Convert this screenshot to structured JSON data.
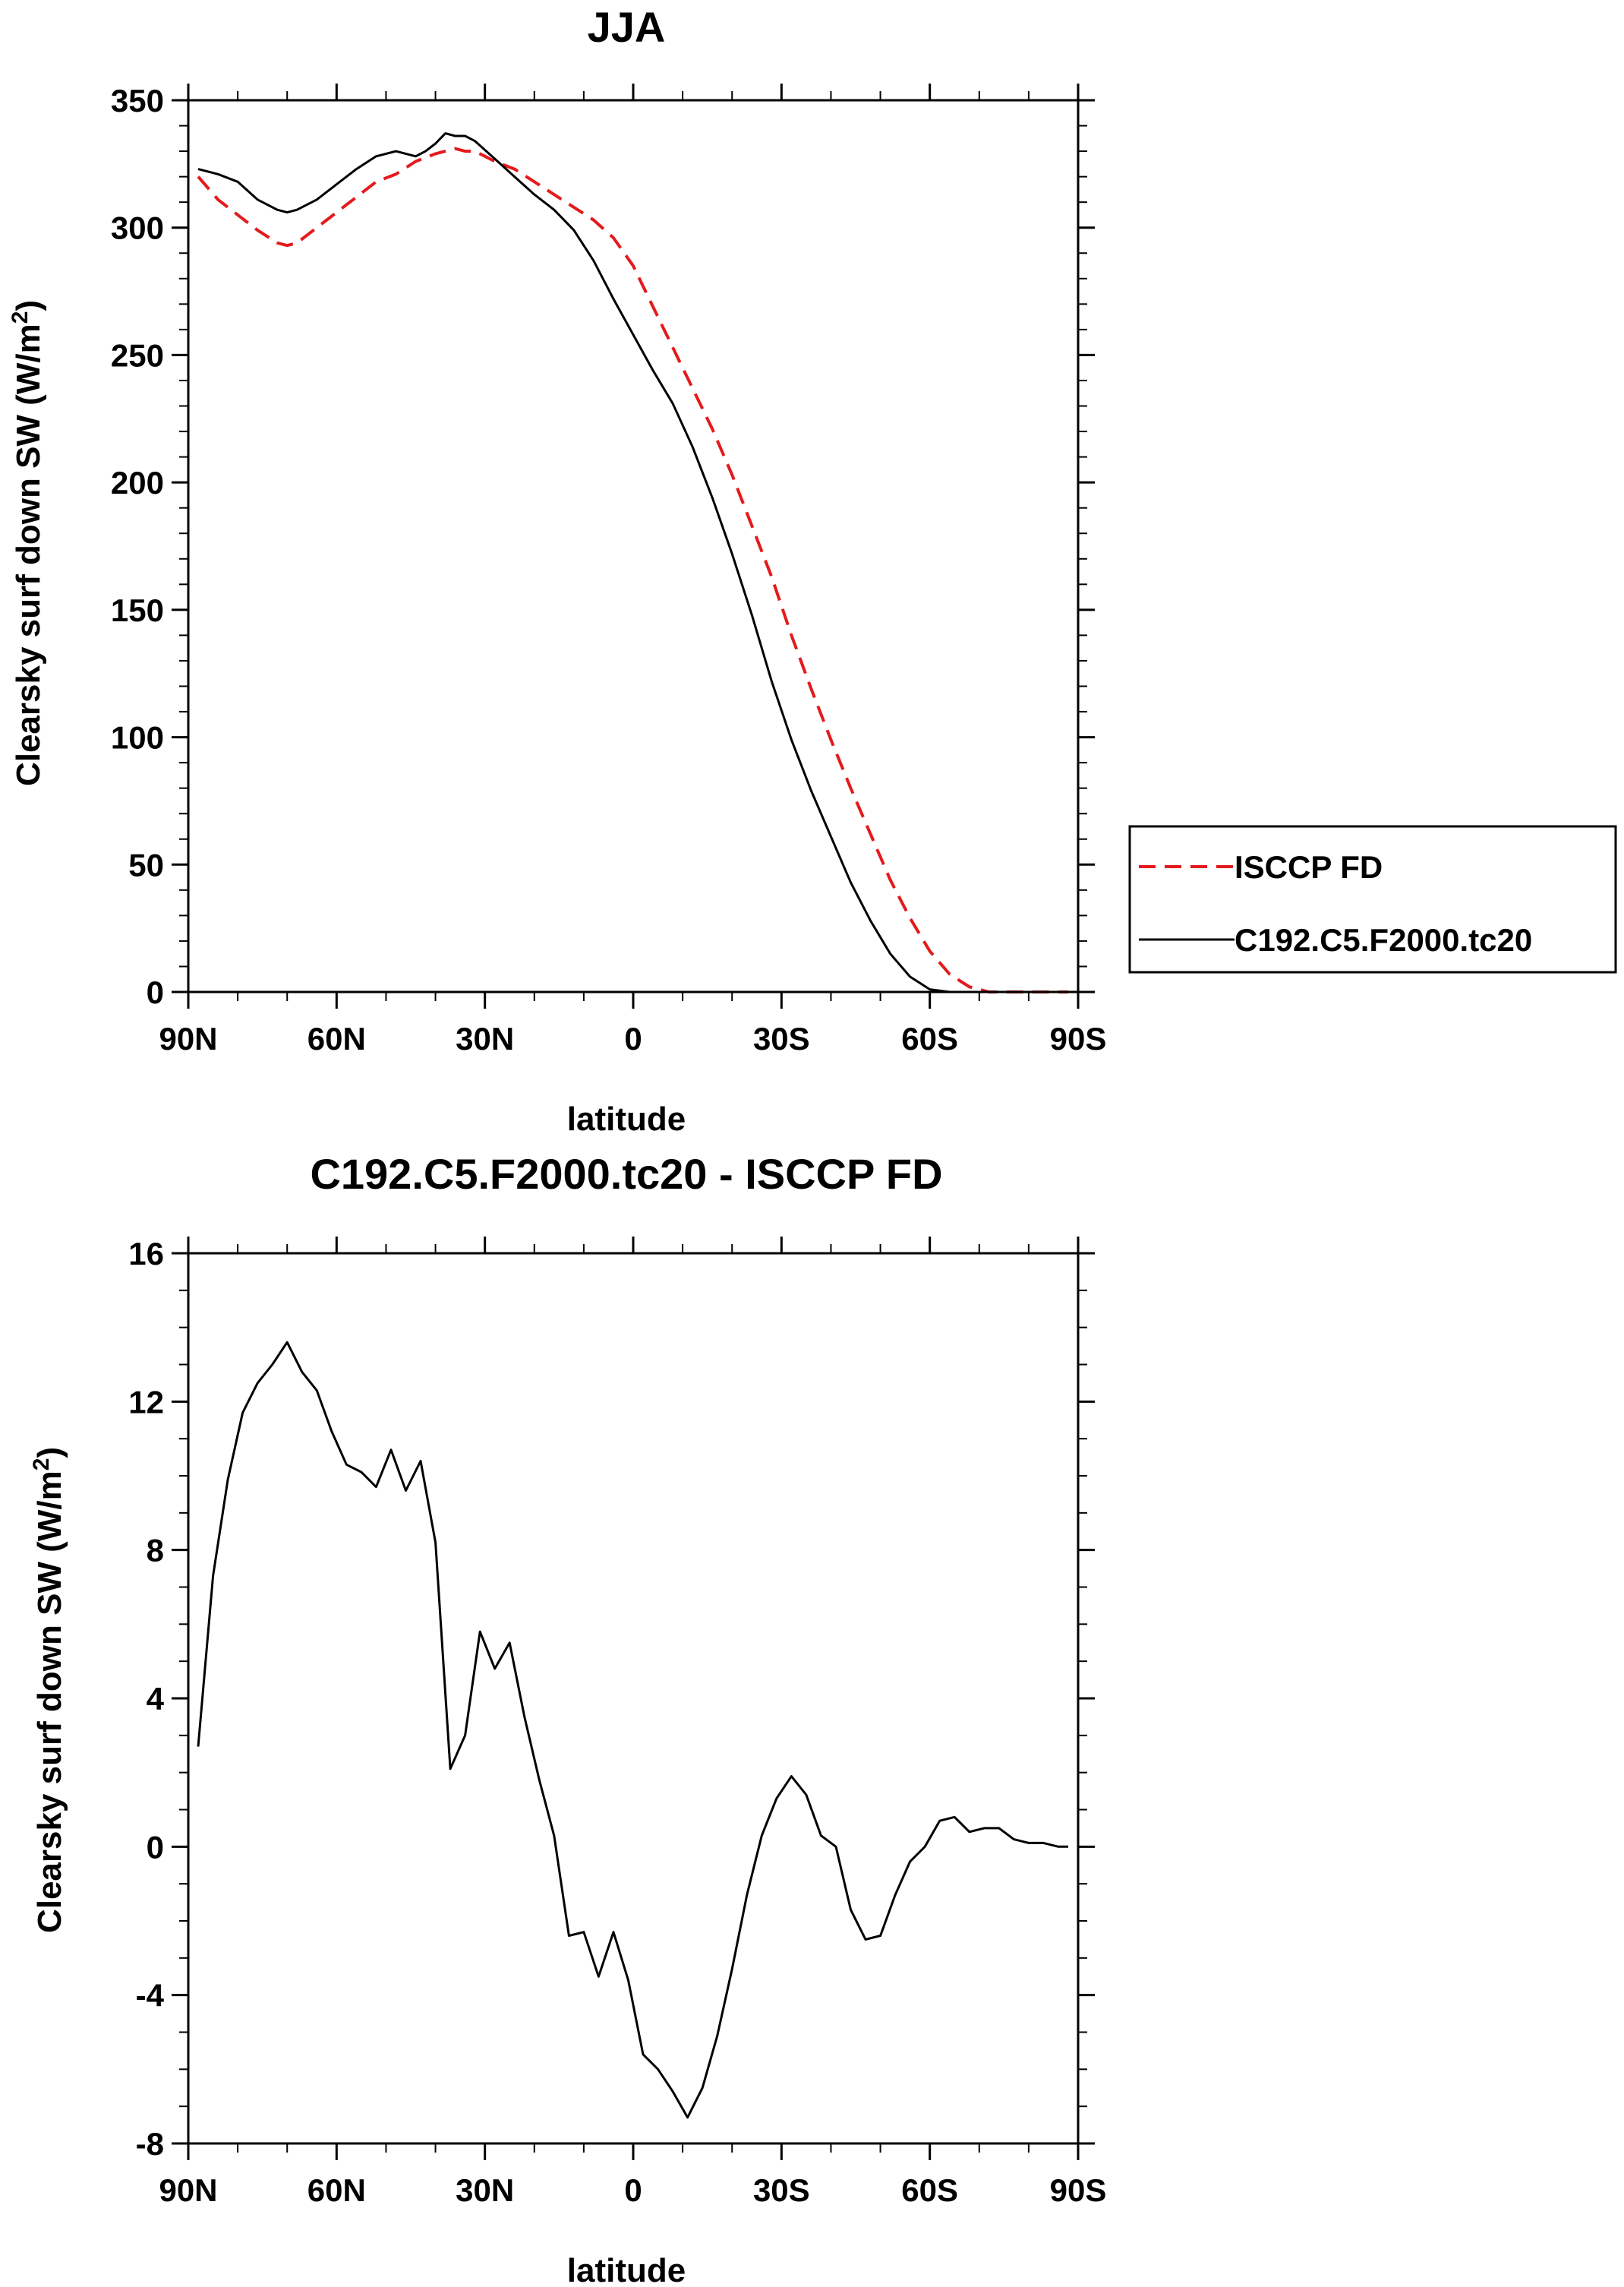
{
  "chart_data": [
    {
      "type": "line",
      "title": "JJA",
      "xlabel": "latitude",
      "ylabel": "Clearsky surf down SW (W/m",
      "ylabel_sup": "2",
      "ylabel_close": ")",
      "xlim": [
        -90,
        90
      ],
      "ylim": [
        0,
        350
      ],
      "xticks": [
        -90,
        -60,
        -30,
        0,
        30,
        60,
        90
      ],
      "xtick_labels": [
        "90N",
        "60N",
        "30N",
        "0",
        "30S",
        "60S",
        "90S"
      ],
      "yticks": [
        0,
        50,
        100,
        150,
        200,
        250,
        300,
        350
      ],
      "ytick_labels": [
        "0",
        "50",
        "100",
        "150",
        "200",
        "250",
        "300",
        "350"
      ],
      "series": [
        {
          "name": "ISCCP FD",
          "color": "#e41a1c",
          "dash": "dashed",
          "x": [
            -88,
            -84,
            -80,
            -76,
            -72,
            -70,
            -68,
            -64,
            -60,
            -56,
            -52,
            -48,
            -44,
            -40,
            -36,
            -34,
            -32,
            -28,
            -24,
            -20,
            -16,
            -12,
            -8,
            -4,
            0,
            4,
            8,
            12,
            16,
            20,
            24,
            28,
            32,
            36,
            40,
            44,
            48,
            52,
            56,
            60,
            64,
            68,
            72,
            76,
            80,
            84,
            88
          ],
          "y": [
            320,
            311,
            305,
            299,
            294,
            293,
            294,
            300,
            306,
            312,
            318,
            321,
            326,
            329,
            331,
            330,
            330,
            326,
            323,
            318,
            313,
            308,
            303,
            296,
            285,
            269,
            253,
            237,
            221,
            203,
            183,
            163,
            140,
            119,
            99,
            80,
            62,
            44,
            29,
            16,
            7,
            2,
            0,
            0,
            0,
            0,
            0
          ]
        },
        {
          "name": "C192.C5.F2000.tc20",
          "color": "#000000",
          "dash": "solid",
          "x": [
            -88,
            -84,
            -80,
            -76,
            -72,
            -70,
            -68,
            -64,
            -60,
            -56,
            -52,
            -48,
            -44,
            -42,
            -40,
            -38,
            -36,
            -34,
            -32,
            -28,
            -24,
            -20,
            -16,
            -12,
            -8,
            -4,
            0,
            4,
            8,
            12,
            16,
            20,
            24,
            28,
            32,
            36,
            40,
            44,
            48,
            52,
            56,
            60,
            64,
            68,
            72,
            76,
            80,
            84,
            88
          ],
          "y": [
            323,
            321,
            318,
            311,
            307,
            306,
            307,
            311,
            317,
            323,
            328,
            330,
            328,
            330,
            333,
            337,
            336,
            336,
            334,
            327,
            320,
            313,
            307,
            299,
            287,
            272,
            258,
            244,
            231,
            214,
            194,
            172,
            148,
            122,
            99,
            79,
            61,
            43,
            28,
            15,
            6,
            1,
            0,
            0,
            0,
            0,
            0,
            0,
            0
          ]
        }
      ],
      "legend": {
        "position": "right",
        "entries": [
          "ISCCP FD",
          "C192.C5.F2000.tc20"
        ]
      }
    },
    {
      "type": "line",
      "title": "C192.C5.F2000.tc20 - ISCCP FD",
      "xlabel": "latitude",
      "ylabel": "Clearsky surf down SW (W/m",
      "ylabel_sup": "2",
      "ylabel_close": ")",
      "xlim": [
        -90,
        90
      ],
      "ylim": [
        -8,
        16
      ],
      "xticks": [
        -90,
        -60,
        -30,
        0,
        30,
        60,
        90
      ],
      "xtick_labels": [
        "90N",
        "60N",
        "30N",
        "0",
        "30S",
        "60S",
        "90S"
      ],
      "yticks": [
        -8,
        -4,
        0,
        4,
        8,
        12,
        16
      ],
      "ytick_labels": [
        "-8",
        "-4",
        "0",
        "4",
        "8",
        "12",
        "16"
      ],
      "series": [
        {
          "name": "C192.C5.F2000.tc20 - ISCCP FD",
          "color": "#000000",
          "dash": "solid",
          "x": [
            -88,
            -85,
            -82,
            -79,
            -76,
            -73,
            -70,
            -67,
            -64,
            -61,
            -58,
            -55,
            -52,
            -49,
            -46,
            -43,
            -40,
            -37,
            -34,
            -31,
            -28,
            -25,
            -22,
            -19,
            -16,
            -13,
            -10,
            -7,
            -4,
            -1,
            2,
            5,
            8,
            11,
            14,
            17,
            20,
            23,
            26,
            29,
            32,
            35,
            38,
            41,
            44,
            47,
            50,
            53,
            56,
            59,
            62,
            65,
            68,
            71,
            74,
            77,
            80,
            83,
            86,
            88
          ],
          "y": [
            2.7,
            7.3,
            9.9,
            11.7,
            12.5,
            13.0,
            13.6,
            12.8,
            12.3,
            11.2,
            10.3,
            10.1,
            9.7,
            10.7,
            9.6,
            10.4,
            8.2,
            2.1,
            3.0,
            5.8,
            4.8,
            5.5,
            3.5,
            1.8,
            0.3,
            -2.4,
            -2.3,
            -3.5,
            -2.3,
            -3.6,
            -5.6,
            -6.0,
            -6.6,
            -7.3,
            -6.5,
            -5.1,
            -3.3,
            -1.3,
            0.3,
            1.3,
            1.9,
            1.4,
            0.3,
            0.0,
            -1.7,
            -2.5,
            -2.4,
            -1.3,
            -0.4,
            0.0,
            0.7,
            0.8,
            0.4,
            0.5,
            0.5,
            0.2,
            0.1,
            0.1,
            0.0,
            0.0
          ]
        }
      ]
    }
  ]
}
